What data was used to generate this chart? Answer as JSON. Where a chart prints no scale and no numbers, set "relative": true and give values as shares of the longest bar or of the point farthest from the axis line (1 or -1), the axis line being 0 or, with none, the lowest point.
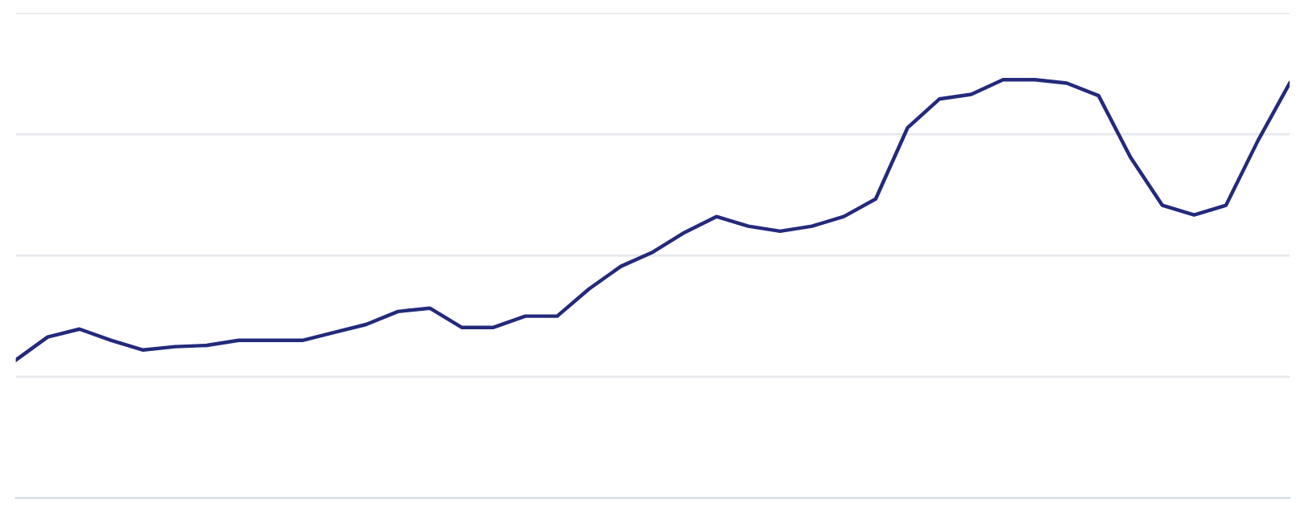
{
  "chart_data": {
    "type": "line",
    "relative": true,
    "grid": "y",
    "marker": "none",
    "line_style": "solid",
    "categories": [
      null,
      null,
      null,
      null,
      null,
      null,
      null,
      null,
      null,
      null,
      null,
      null,
      null,
      null,
      null,
      null,
      null,
      null,
      null,
      null,
      null,
      null,
      null,
      null,
      null,
      null,
      null,
      null,
      null,
      null,
      null,
      null,
      null,
      null,
      null,
      null,
      null,
      null,
      null,
      null,
      null
    ],
    "series": [
      {
        "color": "#232a7c",
        "values": [
          0.33,
          0.385,
          0.404,
          0.377,
          0.354,
          0.362,
          0.365,
          0.377,
          0.377,
          0.377,
          0.396,
          0.415,
          0.446,
          0.454,
          0.408,
          0.408,
          0.435,
          0.435,
          0.5,
          0.554,
          0.588,
          0.635,
          0.673,
          0.65,
          0.638,
          0.65,
          0.673,
          0.715,
          0.885,
          0.954,
          0.965,
          1,
          1,
          0.992,
          0.962,
          0.815,
          0.7,
          0.677,
          0.7,
          0.854,
          0.992
        ]
      }
    ]
  }
}
